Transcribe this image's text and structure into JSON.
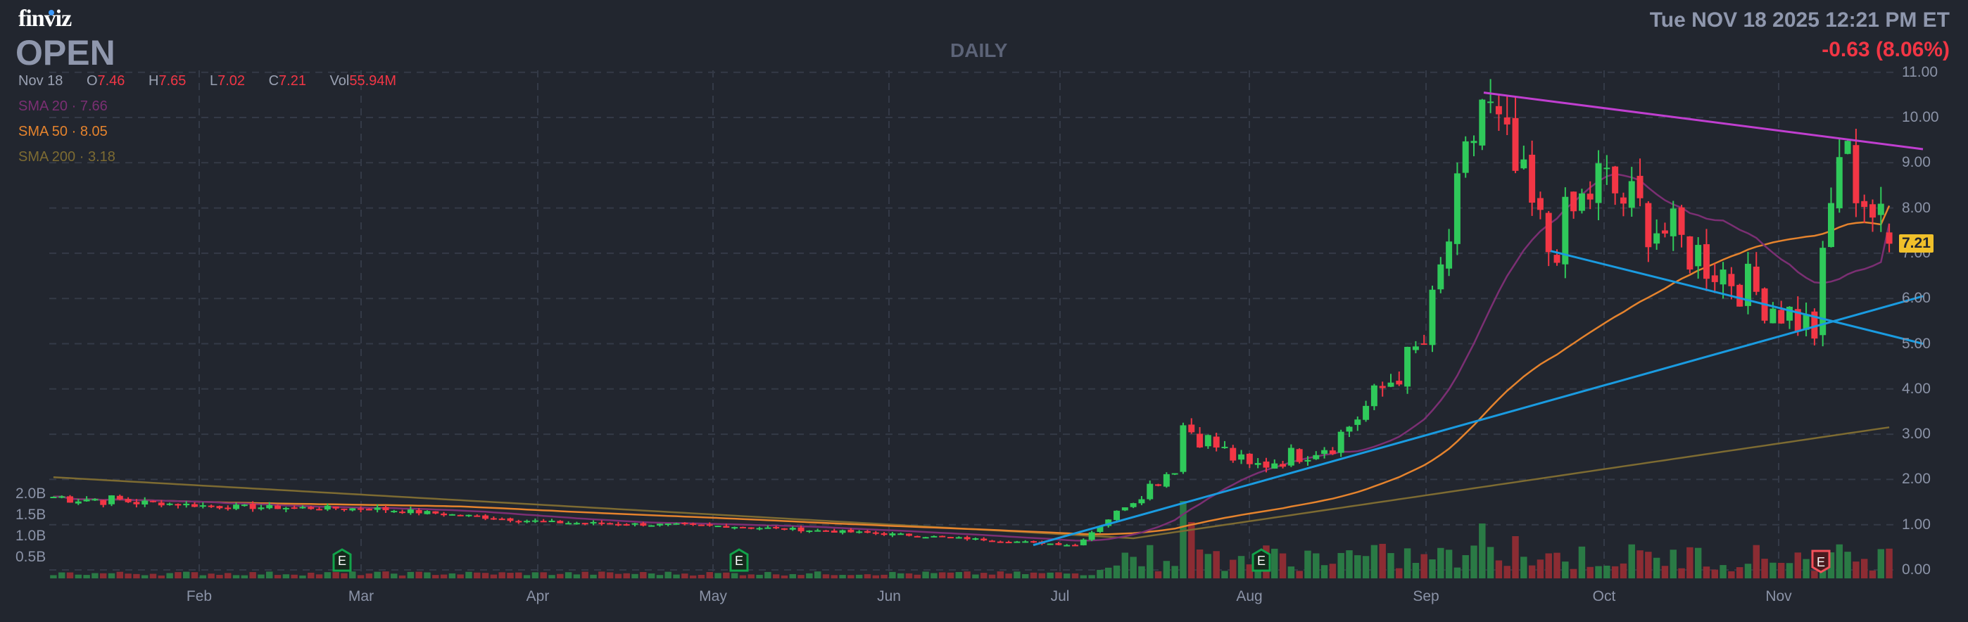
{
  "header": {
    "logo": "finviz",
    "ticker": "OPEN",
    "timeframe": "DAILY",
    "datetime": "Tue NOV 18 2025 12:21 PM ET",
    "change": "-0.63 (8.06%)",
    "ohlc": {
      "date": "Nov 18",
      "open_label": "O",
      "open": "7.46",
      "high_label": "H",
      "high": "7.65",
      "low_label": "L",
      "low": "7.02",
      "close_label": "C",
      "close": "7.21",
      "vol_label": "Vol",
      "vol": "55.94M"
    },
    "sma": [
      {
        "label": "SMA 20",
        "sep": "·",
        "value": "7.66",
        "color": "#7b2f73"
      },
      {
        "label": "SMA 50",
        "sep": "·",
        "value": "8.05",
        "color": "#e5832d"
      },
      {
        "label": "SMA 200",
        "sep": "·",
        "value": "3.18",
        "color": "#7d6b32"
      }
    ],
    "last_price_badge": "7.21"
  },
  "colors": {
    "background": "#22262f",
    "up": "#2fc95a",
    "down": "#f23645",
    "vol_up": "#2a7a45",
    "vol_down": "#8c2c33",
    "sma20": "#7b2f73",
    "sma50": "#e5832d",
    "sma200": "#7d6b32",
    "trend_upper": "#c03fd0",
    "trend_lower": "#1a9be0",
    "grid": "#343a47",
    "badge": "#f0c02a"
  },
  "chart_data": {
    "type": "candlestick",
    "title": "OPEN DAILY",
    "y_axis": {
      "ticks": [
        "11.00",
        "10.00",
        "9.00",
        "8.00",
        "7.00",
        "6.00",
        "5.00",
        "4.00",
        "3.00",
        "2.00",
        "1.00",
        "0.00"
      ],
      "range": [
        0,
        11
      ]
    },
    "volume_axis": {
      "ticks": [
        "2.0B",
        "1.5B",
        "1.0B",
        "0.5B"
      ]
    },
    "x_axis": {
      "ticks": [
        "Feb",
        "Mar",
        "Apr",
        "May",
        "Jun",
        "Jul",
        "Aug",
        "Sep",
        "Oct",
        "Nov"
      ]
    },
    "earnings_markers": [
      {
        "label": "E",
        "month": "late Feb",
        "type": "positive"
      },
      {
        "label": "E",
        "month": "early May",
        "type": "positive"
      },
      {
        "label": "E",
        "month": "early Aug",
        "type": "positive"
      },
      {
        "label": "E",
        "month": "early Nov",
        "type": "negative"
      }
    ],
    "price_path_approx": [
      {
        "date": "Jan 2",
        "close": 1.62
      },
      {
        "date": "Feb 1",
        "close": 1.4
      },
      {
        "date": "Mar 1",
        "close": 1.35
      },
      {
        "date": "Apr 1",
        "close": 1.05
      },
      {
        "date": "May 1",
        "close": 0.97
      },
      {
        "date": "Jun 1",
        "close": 0.78
      },
      {
        "date": "Jul 1",
        "close": 0.55
      },
      {
        "date": "Jul 18",
        "close": 2.3
      },
      {
        "date": "Jul 21",
        "close": 3.21
      },
      {
        "date": "Aug 1",
        "close": 2.25
      },
      {
        "date": "Aug 15",
        "close": 2.8
      },
      {
        "date": "Sep 1",
        "close": 5.0
      },
      {
        "date": "Sep 11",
        "close": 10.4
      },
      {
        "date": "Sep 22",
        "close": 7.1
      },
      {
        "date": "Oct 1",
        "close": 8.6
      },
      {
        "date": "Oct 15",
        "close": 7.2
      },
      {
        "date": "Nov 6",
        "close": 5.3
      },
      {
        "date": "Nov 11",
        "close": 9.3
      },
      {
        "date": "Nov 18",
        "open": 7.46,
        "high": 7.65,
        "low": 7.02,
        "close": 7.21
      }
    ],
    "sma": {
      "sma20": 7.66,
      "sma50": 8.05,
      "sma200": 3.18
    },
    "trendlines": [
      {
        "name": "upper resistance",
        "from": {
          "date": "Sep 11",
          "price": 10.55
        },
        "to": {
          "date": "Nov 18",
          "price": 9.3
        }
      },
      {
        "name": "lower support (rising)",
        "from": {
          "date": "Jun 30",
          "price": 0.55
        },
        "to": {
          "date": "Nov 18",
          "price": 6.05
        }
      },
      {
        "name": "lower support (falling)",
        "from": {
          "date": "Sep 22",
          "price": 7.05
        },
        "to": {
          "date": "Nov 18",
          "price": 5.0
        }
      }
    ]
  }
}
